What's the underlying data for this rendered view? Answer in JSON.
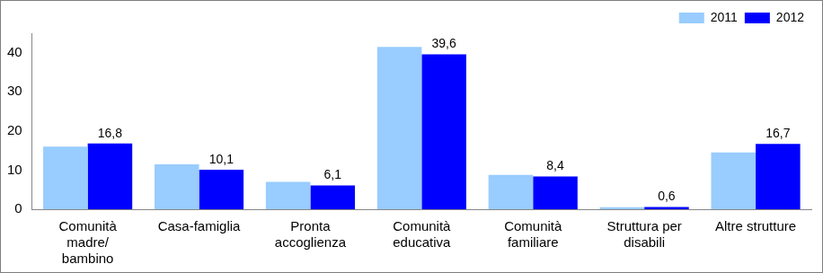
{
  "chart_data": {
    "type": "bar",
    "categories": [
      [
        "Comunità",
        "madre/",
        "bambino"
      ],
      "Casa-famiglia",
      [
        "Pronta",
        "accoglienza"
      ],
      [
        "Comunità",
        "educativa"
      ],
      [
        "Comunità",
        "familiare"
      ],
      [
        "Struttura per",
        "disabili"
      ],
      "Altre strutture"
    ],
    "series": [
      {
        "name": "2011",
        "color": "#99ccff",
        "values": [
          16.0,
          11.5,
          7.0,
          41.5,
          8.8,
          0.5,
          14.5
        ]
      },
      {
        "name": "2012",
        "color": "#0000ff",
        "values": [
          16.8,
          10.1,
          6.1,
          39.6,
          8.4,
          0.6,
          16.7
        ],
        "data_labels": true,
        "value_labels": [
          "16,8",
          "10,1",
          "6,1",
          "39,6",
          "8,4",
          "0,6",
          "16,7"
        ]
      }
    ],
    "ylim": [
      0,
      45
    ],
    "yticks": [
      0,
      10,
      20,
      30,
      40
    ],
    "grid": false,
    "legend": "top-right"
  }
}
